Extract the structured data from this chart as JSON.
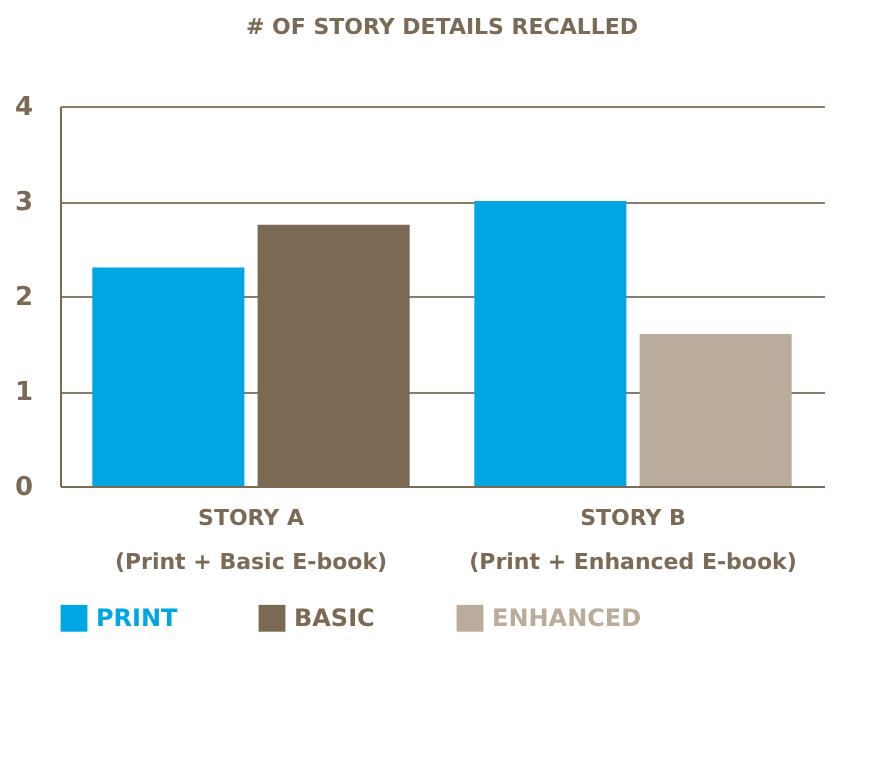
{
  "chart_data": {
    "type": "bar",
    "title": "# OF STORY DETAILS RECALLED",
    "categories": [
      "STORY A\n(Print + Basic E-book)",
      "STORY B\n(Print + Enhanced E-book)"
    ],
    "series": [
      {
        "name": "PRINT",
        "color": "#00a6e2",
        "values": [
          2.3,
          3.0
        ]
      },
      {
        "name": "BASIC",
        "color": "#7b6954",
        "values": [
          2.75,
          null
        ]
      },
      {
        "name": "ENHANCED",
        "color": "#b9ac9b",
        "values": [
          null,
          1.6
        ]
      }
    ],
    "ylim": [
      0,
      4
    ],
    "yticks": [
      0,
      1,
      2,
      3,
      4
    ],
    "grid": "y",
    "legend": "bottom"
  }
}
